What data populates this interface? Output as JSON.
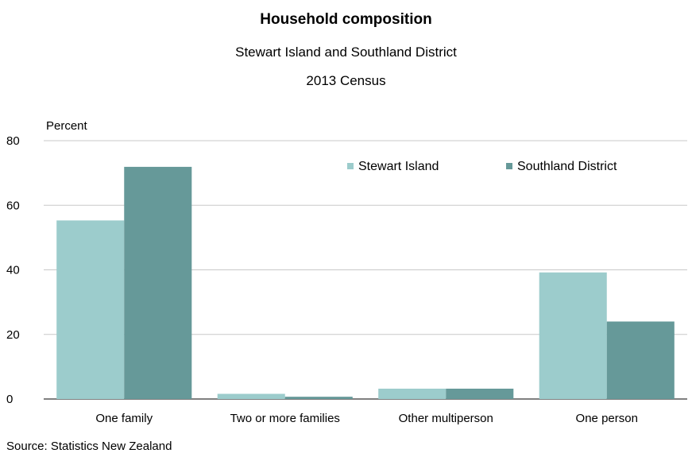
{
  "chart_data": {
    "type": "bar",
    "title": "Household composition",
    "subtitle": [
      "Stewart Island and Southland District",
      "2013 Census"
    ],
    "ylabel": "Percent",
    "xlabel": "",
    "ylim": [
      0,
      80
    ],
    "yticks": [
      0,
      20,
      40,
      60,
      80
    ],
    "categories": [
      "One family",
      "Two or more families",
      "Other multiperson",
      "One person"
    ],
    "series": [
      {
        "name": "Stewart Island",
        "color": "#9ccccc",
        "values": [
          55.3,
          1.6,
          3.2,
          39.2
        ]
      },
      {
        "name": "Southland District",
        "color": "#669999",
        "values": [
          71.9,
          0.7,
          3.2,
          24.0
        ]
      }
    ],
    "grid": "horizontal",
    "legend": "top-right",
    "source": "Source: Statistics New Zealand"
  }
}
